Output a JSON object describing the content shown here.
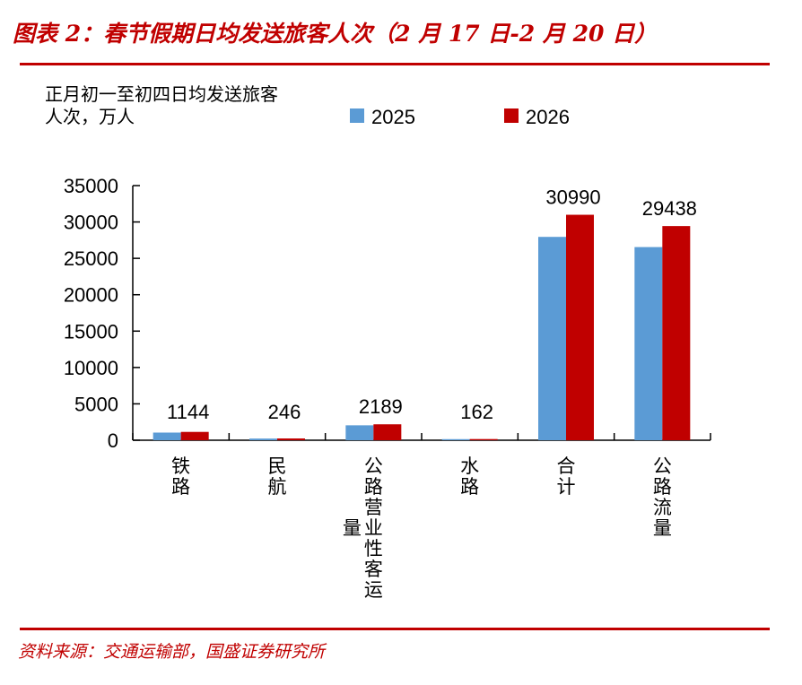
{
  "header": {
    "title": "图表 2：春节假期日均发送旅客人次（2 月 17 日-2 月 20 日）"
  },
  "footer": {
    "source": "资料来源：交通运输部，国盛证券研究所"
  },
  "colors": {
    "accent": "#c00000",
    "series_2025": "#5b9bd5",
    "series_2026": "#c00000"
  },
  "chart_data": {
    "type": "bar",
    "title": "",
    "ylabel": "正月初一至初四日均发送旅客人次，万人",
    "ylabel_lines": [
      "正月初一至初四日均发送旅客",
      "人次，万人"
    ],
    "xlabel": "",
    "ylim": [
      0,
      35000
    ],
    "yticks": [
      0,
      5000,
      10000,
      15000,
      20000,
      25000,
      30000,
      35000
    ],
    "grid": false,
    "legend_position": "top",
    "categories": [
      "铁路",
      "民航",
      "公路营业性客运量",
      "水路",
      "合计",
      "公路流量"
    ],
    "series": [
      {
        "name": "2025",
        "values": [
          1050,
          230,
          2050,
          150,
          27950,
          26550
        ]
      },
      {
        "name": "2026",
        "values": [
          1144,
          246,
          2189,
          162,
          30990,
          29438
        ]
      }
    ],
    "data_labels": [
      "1144",
      "246",
      "2189",
      "162",
      "30990",
      "29438"
    ]
  }
}
